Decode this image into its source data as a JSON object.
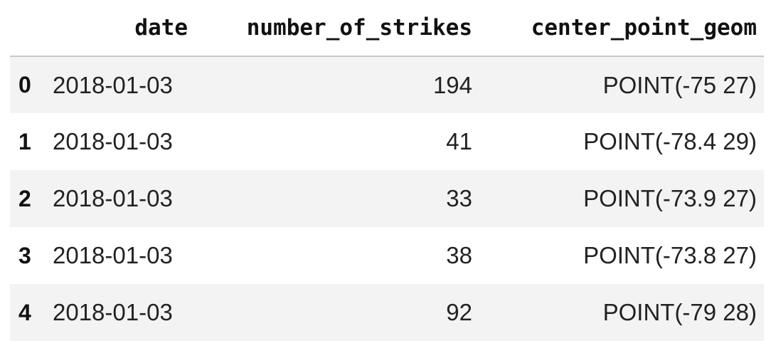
{
  "dataframe": {
    "columns": [
      "",
      "date",
      "number_of_strikes",
      "center_point_geom"
    ],
    "rows": [
      {
        "index": "0",
        "date": "2018-01-03",
        "number_of_strikes": "194",
        "center_point_geom": "POINT(-75 27)"
      },
      {
        "index": "1",
        "date": "2018-01-03",
        "number_of_strikes": "41",
        "center_point_geom": "POINT(-78.4 29)"
      },
      {
        "index": "2",
        "date": "2018-01-03",
        "number_of_strikes": "33",
        "center_point_geom": "POINT(-73.9 27)"
      },
      {
        "index": "3",
        "date": "2018-01-03",
        "number_of_strikes": "38",
        "center_point_geom": "POINT(-73.8 27)"
      },
      {
        "index": "4",
        "date": "2018-01-03",
        "number_of_strikes": "92",
        "center_point_geom": "POINT(-79 28)"
      }
    ]
  }
}
